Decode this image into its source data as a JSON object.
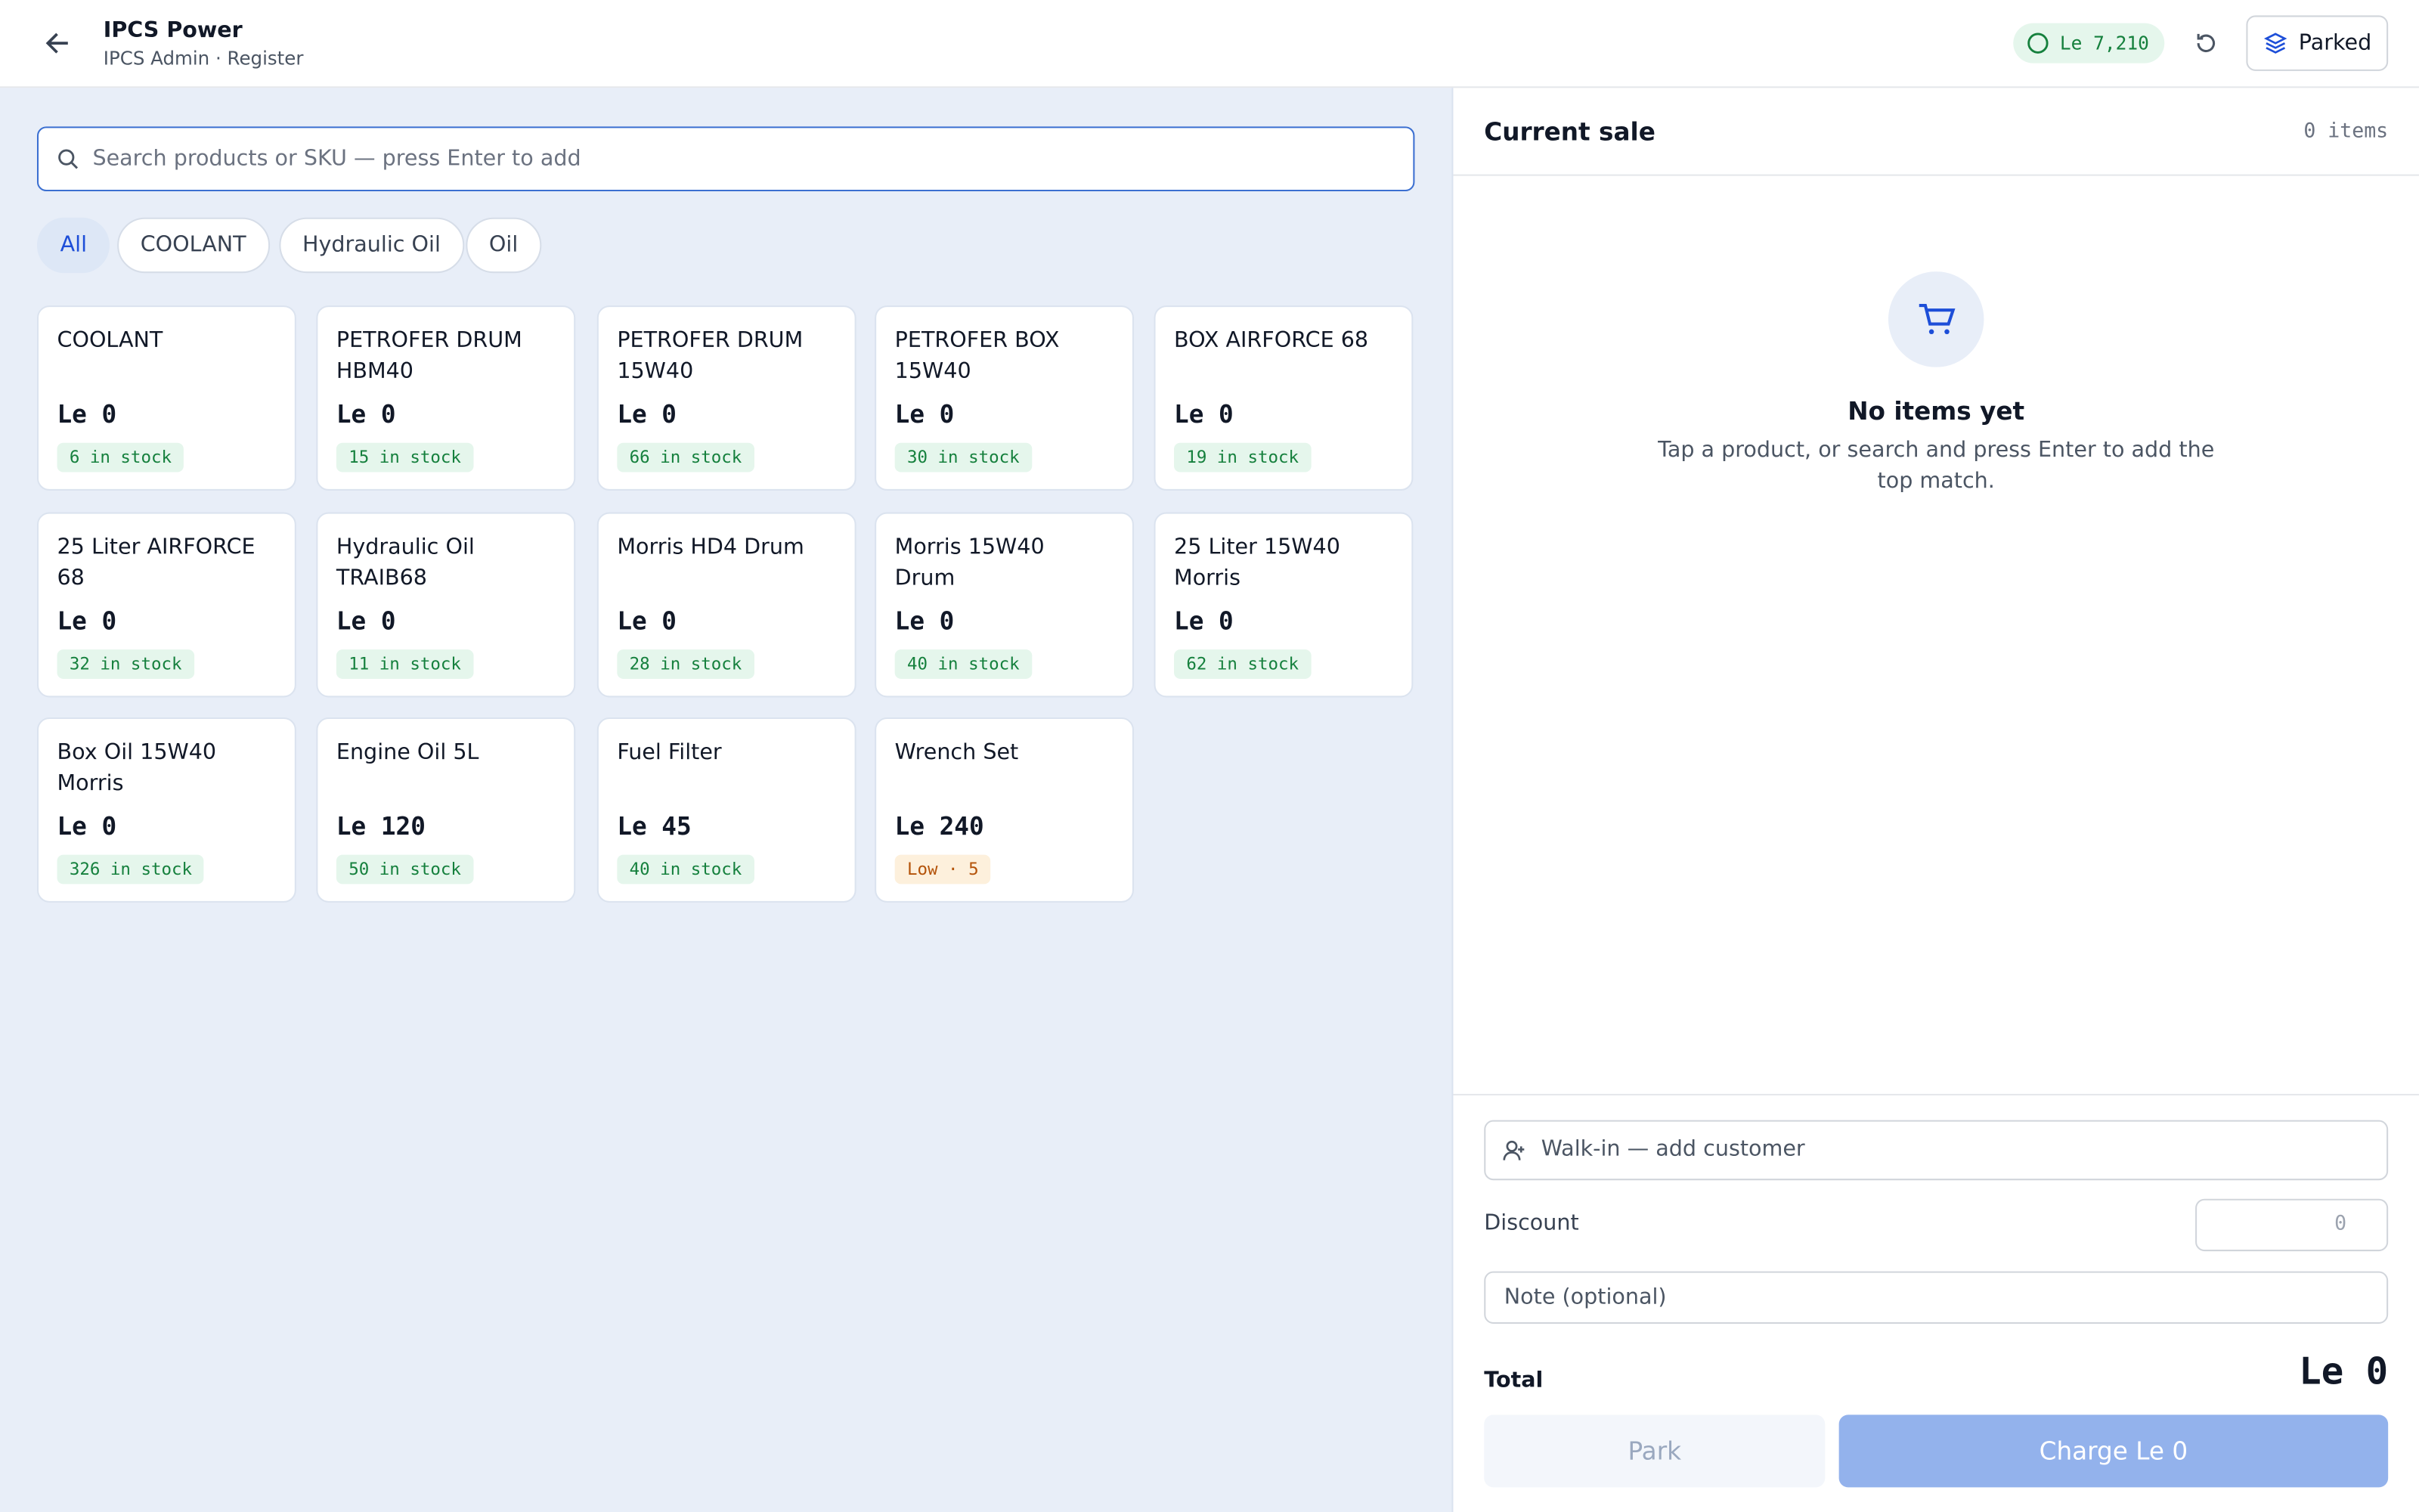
{
  "header": {
    "title": "IPCS Power",
    "subtitle": "IPCS Admin · Register",
    "balance": "Le 7,210",
    "parked": "Parked"
  },
  "search": {
    "placeholder": "Search products or SKU — press Enter to add"
  },
  "filters": [
    "All",
    "COOLANT",
    "Hydraulic Oil",
    "Oil"
  ],
  "products": [
    {
      "name": "COOLANT",
      "price": "Le 0",
      "stock": "6 in stock"
    },
    {
      "name": "PETROFER DRUM HBM40",
      "price": "Le 0",
      "stock": "15 in stock"
    },
    {
      "name": "PETROFER DRUM 15W40",
      "price": "Le 0",
      "stock": "66 in stock"
    },
    {
      "name": "PETROFER BOX 15W40",
      "price": "Le 0",
      "stock": "30 in stock"
    },
    {
      "name": "BOX AIRFORCE 68",
      "price": "Le 0",
      "stock": "19 in stock"
    },
    {
      "name": "25 Liter AIRFORCE 68",
      "price": "Le 0",
      "stock": "32 in stock"
    },
    {
      "name": "Hydraulic Oil TRAIB68",
      "price": "Le 0",
      "stock": "11 in stock"
    },
    {
      "name": "Morris HD4 Drum",
      "price": "Le 0",
      "stock": "28 in stock"
    },
    {
      "name": "Morris 15W40 Drum",
      "price": "Le 0",
      "stock": "40 in stock"
    },
    {
      "name": "25 Liter 15W40 Morris",
      "price": "Le 0",
      "stock": "62 in stock"
    },
    {
      "name": "Box Oil 15W40 Morris",
      "price": "Le 0",
      "stock": "326 in stock"
    },
    {
      "name": "Engine Oil 5L",
      "price": "Le 120",
      "stock": "50 in stock"
    },
    {
      "name": "Fuel Filter",
      "price": "Le 45",
      "stock": "40 in stock"
    },
    {
      "name": "Wrench Set",
      "price": "Le 240",
      "stock": "Low · 5",
      "low": true
    }
  ],
  "cart": {
    "title": "Current sale",
    "count": "0 items",
    "empty_title": "No items yet",
    "empty_text": "Tap a product, or search and press Enter to add the top match.",
    "customer": "Walk-in — add customer",
    "discount_label": "Discount",
    "discount_value": "0",
    "note": "Note (optional)",
    "total_label": "Total",
    "total": "Le 0",
    "park": "Park",
    "charge": "Charge Le 0"
  }
}
